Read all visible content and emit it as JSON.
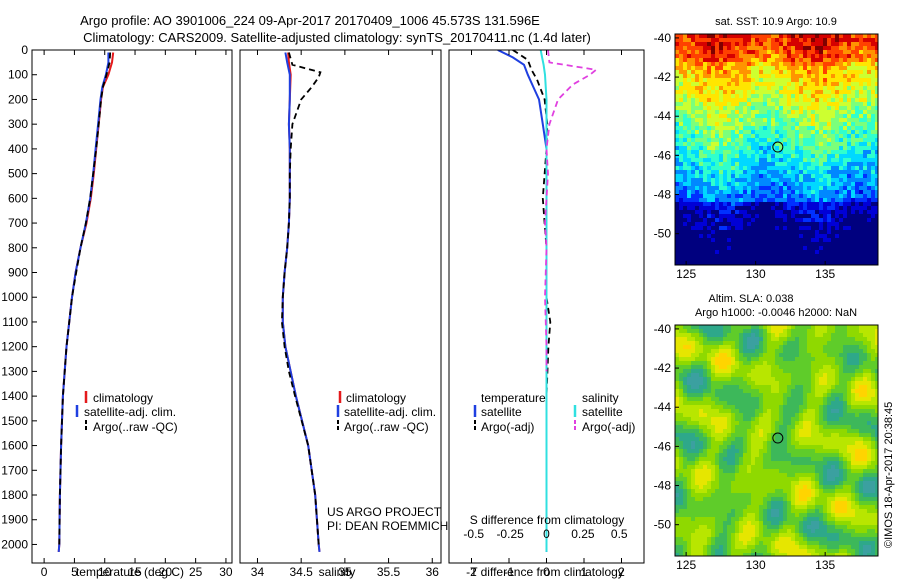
{
  "title": {
    "line1": "Argo profile: AO 3901006_224 09-Apr-2017 20170409_1006 45.573S 131.596E",
    "line2": "Climatology: CARS2009. Satellite-adjusted climatology: synTS_20170411.nc (1.4d later)"
  },
  "colors": {
    "climatology": "#e41a1c",
    "satellite": "#1f3fe0",
    "argo": "#000000",
    "sal_satellite": "#30e0e0",
    "sal_argo": "#e040e0"
  },
  "chart_data": [
    {
      "id": "temperature",
      "type": "line",
      "xlabel": "temperature (deg C)",
      "ylabel": "",
      "xlim": [
        -2,
        31
      ],
      "ylim": [
        2075,
        0
      ],
      "xticks": [
        0,
        5,
        10,
        15,
        20,
        25,
        30
      ],
      "xtick_labels": [
        "0",
        "5",
        "10",
        "15",
        "20",
        "25",
        "30"
      ],
      "yticks": [
        0,
        100,
        200,
        300,
        400,
        500,
        600,
        700,
        800,
        900,
        1000,
        1100,
        1200,
        1300,
        1400,
        1500,
        1600,
        1700,
        1800,
        1900,
        2000
      ],
      "ytick_labels": [
        "0",
        "100",
        "200",
        "300",
        "400",
        "500",
        "600",
        "700",
        "800",
        "900",
        "1000",
        "1100",
        "1200",
        "1300",
        "1400",
        "1500",
        "1600",
        "1700",
        "1800",
        "1900",
        "2000"
      ],
      "legend": {
        "entries": [
          "climatology",
          "satellite-adj. clim.",
          "Argo(..raw -QC)"
        ]
      },
      "series": [
        {
          "name": "climatology",
          "color": "#e41a1c",
          "dash": "",
          "depth": [
            10,
            50,
            100,
            150,
            200,
            300,
            400,
            500,
            600,
            700,
            800,
            900,
            1000,
            1200,
            1400,
            1600,
            1800,
            2000,
            2030
          ],
          "values": [
            11.4,
            11.2,
            10.6,
            9.7,
            9.4,
            9.0,
            8.6,
            8.2,
            7.7,
            7.0,
            6.0,
            5.2,
            4.6,
            3.7,
            3.1,
            2.8,
            2.6,
            2.5,
            2.4
          ]
        },
        {
          "name": "satellite-adj. clim.",
          "color": "#1f3fe0",
          "dash": "",
          "depth": [
            10,
            50,
            100,
            150,
            200,
            300,
            400,
            500,
            600,
            700,
            800,
            900,
            1000,
            1200,
            1400,
            1600,
            1800,
            2000,
            2030
          ],
          "values": [
            10.6,
            10.6,
            10.2,
            9.6,
            9.3,
            8.9,
            8.5,
            8.1,
            7.6,
            6.9,
            6.0,
            5.2,
            4.6,
            3.7,
            3.1,
            2.8,
            2.6,
            2.5,
            2.4
          ]
        },
        {
          "name": "Argo(..raw -QC)",
          "color": "#000000",
          "dash": "6,4",
          "depth": [
            10,
            50,
            100,
            150,
            200,
            300,
            400,
            500,
            600,
            700,
            800,
            900,
            1000,
            1200,
            1400,
            1600,
            1800,
            2000
          ],
          "values": [
            10.9,
            10.8,
            10.3,
            9.7,
            9.4,
            9.0,
            8.6,
            8.1,
            7.6,
            6.9,
            6.0,
            5.3,
            4.6,
            3.7,
            3.1,
            2.8,
            2.6,
            2.5
          ]
        }
      ]
    },
    {
      "id": "salinity",
      "type": "line",
      "xlabel": "salinity",
      "ylabel": "",
      "xlim": [
        33.8,
        36.1
      ],
      "ylim": [
        2075,
        0
      ],
      "xticks": [
        34,
        34.5,
        35,
        35.5,
        36
      ],
      "xtick_labels": [
        "34",
        "34.5",
        "35",
        "35.5",
        "36"
      ],
      "legend": {
        "entries": [
          "climatology",
          "satellite-adj. clim.",
          "Argo(..raw -QC)"
        ]
      },
      "annotation": {
        "line1": "US ARGO PROJECT",
        "line2": "PI: DEAN ROEMMICH"
      },
      "series": [
        {
          "name": "climatology",
          "color": "#e41a1c",
          "dash": "",
          "depth": [
            10,
            50,
            100,
            200,
            300,
            400,
            500,
            600,
            700,
            800,
            900,
            1000,
            1100,
            1200,
            1400,
            1600,
            1800,
            2000,
            2030
          ],
          "values": [
            34.35,
            34.36,
            34.38,
            34.37,
            34.36,
            34.37,
            34.37,
            34.37,
            34.36,
            34.34,
            34.31,
            34.29,
            34.29,
            34.32,
            34.44,
            34.58,
            34.66,
            34.7,
            34.71
          ]
        },
        {
          "name": "satellite-adj. clim.",
          "color": "#1f3fe0",
          "dash": "",
          "depth": [
            10,
            50,
            100,
            200,
            300,
            400,
            500,
            600,
            700,
            800,
            900,
            1000,
            1100,
            1200,
            1400,
            1600,
            1800,
            2000,
            2030
          ],
          "values": [
            34.32,
            34.34,
            34.37,
            34.37,
            34.36,
            34.37,
            34.37,
            34.37,
            34.36,
            34.34,
            34.31,
            34.29,
            34.29,
            34.32,
            34.44,
            34.58,
            34.66,
            34.7,
            34.71
          ]
        },
        {
          "name": "Argo(..raw -QC)",
          "color": "#000000",
          "dash": "6,4",
          "depth": [
            10,
            60,
            90,
            110,
            150,
            200,
            300,
            400,
            500,
            600,
            700,
            800,
            900,
            1000,
            1100,
            1200,
            1300,
            1400,
            1600,
            1800,
            2000
          ],
          "values": [
            34.36,
            34.4,
            34.72,
            34.7,
            34.62,
            34.5,
            34.4,
            34.38,
            34.37,
            34.37,
            34.36,
            34.34,
            34.31,
            34.29,
            34.28,
            34.31,
            34.36,
            34.43,
            34.58,
            34.66,
            34.7
          ]
        }
      ]
    },
    {
      "id": "differences",
      "type": "line",
      "xlabel": "T difference from climatology",
      "xlabel_top": "S difference from climatology",
      "xlim": [
        -2.6,
        2.6
      ],
      "ylim": [
        2075,
        0
      ],
      "xticks": [
        -2,
        -1,
        0,
        1,
        2
      ],
      "xtick_labels": [
        "-2",
        "-1",
        "0",
        "1",
        "2"
      ],
      "xticks_sal": [
        -0.5,
        -0.25,
        0,
        0.25,
        0.5
      ],
      "xtick_labels_sal": [
        "-0.5",
        "-0.25",
        "0",
        "0.25",
        "0.5"
      ],
      "legend": {
        "temperature_header": "temperature",
        "salinity_header": "salinity",
        "entries": [
          "satellite",
          "Argo(-adj)",
          "satellite",
          "Argo(-adj)"
        ]
      },
      "series": [
        {
          "name": "temperature satellite",
          "color": "#1f3fe0",
          "dash": "",
          "depth": [
            0,
            30,
            60,
            100,
            150,
            200,
            300,
            400,
            600,
            800,
            1000,
            1200,
            1400,
            1600,
            1800,
            2030
          ],
          "values": [
            -1.3,
            -0.9,
            -0.6,
            -0.5,
            -0.35,
            -0.2,
            -0.1,
            0,
            0,
            0,
            0,
            0,
            0,
            0,
            0,
            0
          ]
        },
        {
          "name": "temperature Argo(-adj)",
          "color": "#000000",
          "dash": "6,4",
          "depth": [
            0,
            40,
            80,
            120,
            200,
            300,
            400,
            600,
            700,
            800,
            1000,
            1100,
            1200,
            1400,
            1600,
            1800,
            2000
          ],
          "values": [
            -0.9,
            -0.5,
            -0.4,
            -0.25,
            -0.05,
            0.02,
            0,
            -0.1,
            -0.05,
            0,
            0,
            0.1,
            0.05,
            0,
            0,
            0,
            0
          ]
        },
        {
          "name": "salinity satellite",
          "color": "#30e0e0",
          "dash": "",
          "depth": [
            0,
            30,
            60,
            100,
            200,
            400,
            600,
            800,
            1000,
            1200,
            1400,
            1600,
            1800,
            2030
          ],
          "values": [
            -0.04,
            -0.03,
            -0.02,
            -0.01,
            0,
            0,
            0,
            0,
            0,
            0,
            0,
            0,
            0,
            0
          ]
        },
        {
          "name": "salinity Argo(-adj)",
          "color": "#e040e0",
          "dash": "6,4",
          "depth": [
            0,
            50,
            80,
            100,
            140,
            200,
            300,
            400,
            500,
            600,
            700,
            800,
            1000,
            1200,
            1300
          ],
          "values": [
            0.01,
            0.02,
            0.34,
            0.3,
            0.18,
            0.08,
            0.02,
            0,
            0.01,
            0,
            -0.01,
            0,
            -0.01,
            0,
            0
          ]
        }
      ]
    },
    {
      "id": "sst_map",
      "type": "heatmap",
      "title": "sat. SST: 10.9 Argo: 10.9",
      "xticks": [
        125,
        130,
        135
      ],
      "xtick_labels": [
        "125",
        "130",
        "135"
      ],
      "yticks": [
        -40,
        -42,
        -44,
        -46,
        -48,
        -50
      ],
      "ytick_labels": [
        "-40",
        "-42",
        "-44",
        "-46",
        "-48",
        "-50"
      ],
      "xlim": [
        124.2,
        138.8
      ],
      "ylim": [
        -51.6,
        -39.8
      ],
      "marker": {
        "lon": 131.596,
        "lat": -45.573
      }
    },
    {
      "id": "sla_map",
      "type": "heatmap",
      "title_line1": "Altim. SLA: 0.038",
      "title_line2": "Argo h1000: -0.0046 h2000: NaN",
      "xticks": [
        125,
        130,
        135
      ],
      "xtick_labels": [
        "125",
        "130",
        "135"
      ],
      "yticks": [
        -40,
        -42,
        -44,
        -46,
        -48,
        -50
      ],
      "ytick_labels": [
        "-40",
        "-42",
        "-44",
        "-46",
        "-48",
        "-50"
      ],
      "xlim": [
        124.2,
        138.8
      ],
      "ylim": [
        -51.6,
        -39.8
      ],
      "marker": {
        "lon": 131.596,
        "lat": -45.573
      }
    }
  ],
  "stamp": "©IMOS 18-Apr-2017 20:38:45"
}
